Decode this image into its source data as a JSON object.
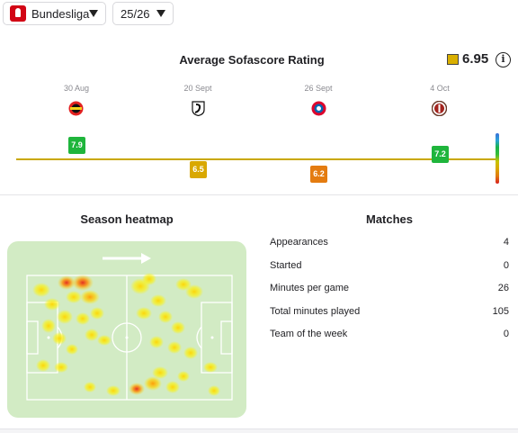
{
  "filters": {
    "league": {
      "label": "Bundesliga",
      "icon": "bundesliga-logo-icon"
    },
    "season": {
      "label": "25/26"
    }
  },
  "rating_section": {
    "title": "Average Sofascore Rating",
    "average": "6.95",
    "average_color": "#d9af00",
    "info_icon": "info-icon",
    "matches": [
      {
        "date": "30 Aug",
        "team": "Bayer Leverkusen",
        "rating": "7.9",
        "color": "#1fb53c"
      },
      {
        "date": "",
        "team": "",
        "rating": "6.5",
        "color": "#d9a800"
      },
      {
        "date": "20 Sept",
        "team": "SC Freiburg",
        "rating": "",
        "color": ""
      },
      {
        "date": "",
        "team": "",
        "rating": "6.2",
        "color": "#e47c10"
      },
      {
        "date": "26 Sept",
        "team": "Bayern Munich",
        "rating": "",
        "color": ""
      },
      {
        "date": "4 Oct",
        "team": "St. Pauli",
        "rating": "7.2",
        "color": "#1fb53c"
      }
    ]
  },
  "heatmap": {
    "title": "Season heatmap",
    "attack_direction_icon": "arrow-right-icon"
  },
  "matches_stats": {
    "title": "Matches",
    "rows": [
      {
        "label": "Appearances",
        "value": "4"
      },
      {
        "label": "Started",
        "value": "0"
      },
      {
        "label": "Minutes per game",
        "value": "26"
      },
      {
        "label": "Total minutes played",
        "value": "105"
      },
      {
        "label": "Team of the week",
        "value": "0"
      }
    ]
  }
}
